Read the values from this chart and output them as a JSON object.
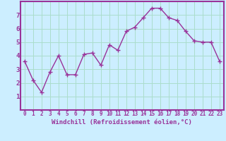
{
  "x": [
    0,
    1,
    2,
    3,
    4,
    5,
    6,
    7,
    8,
    9,
    10,
    11,
    12,
    13,
    14,
    15,
    16,
    17,
    18,
    19,
    20,
    21,
    22,
    23
  ],
  "y": [
    3.6,
    2.2,
    1.3,
    2.8,
    4.0,
    2.6,
    2.6,
    4.1,
    4.2,
    3.3,
    4.8,
    4.4,
    5.8,
    6.1,
    6.8,
    7.5,
    7.5,
    6.8,
    6.6,
    5.8,
    5.1,
    5.0,
    5.0,
    3.6
  ],
  "line_color": "#993399",
  "marker": "+",
  "marker_size": 4,
  "marker_linewidth": 1.0,
  "linewidth": 1.0,
  "bg_color": "#cceeff",
  "grid_color": "#aaddcc",
  "xlabel": "Windchill (Refroidissement éolien,°C)",
  "xlabel_color": "#993399",
  "tick_color": "#993399",
  "spine_color": "#993399",
  "ylim": [
    0,
    8
  ],
  "xlim": [
    -0.5,
    23.5
  ],
  "yticks": [
    1,
    2,
    3,
    4,
    5,
    6,
    7
  ],
  "xticks": [
    0,
    1,
    2,
    3,
    4,
    5,
    6,
    7,
    8,
    9,
    10,
    11,
    12,
    13,
    14,
    15,
    16,
    17,
    18,
    19,
    20,
    21,
    22,
    23
  ],
  "xtick_labels": [
    "0",
    "1",
    "2",
    "3",
    "4",
    "5",
    "6",
    "7",
    "8",
    "9",
    "10",
    "11",
    "12",
    "13",
    "14",
    "15",
    "16",
    "17",
    "18",
    "19",
    "20",
    "21",
    "22",
    "23"
  ],
  "tick_fontsize": 5.5,
  "ytick_fontsize": 6.5,
  "xlabel_fontsize": 6.5,
  "font_family": "monospace"
}
